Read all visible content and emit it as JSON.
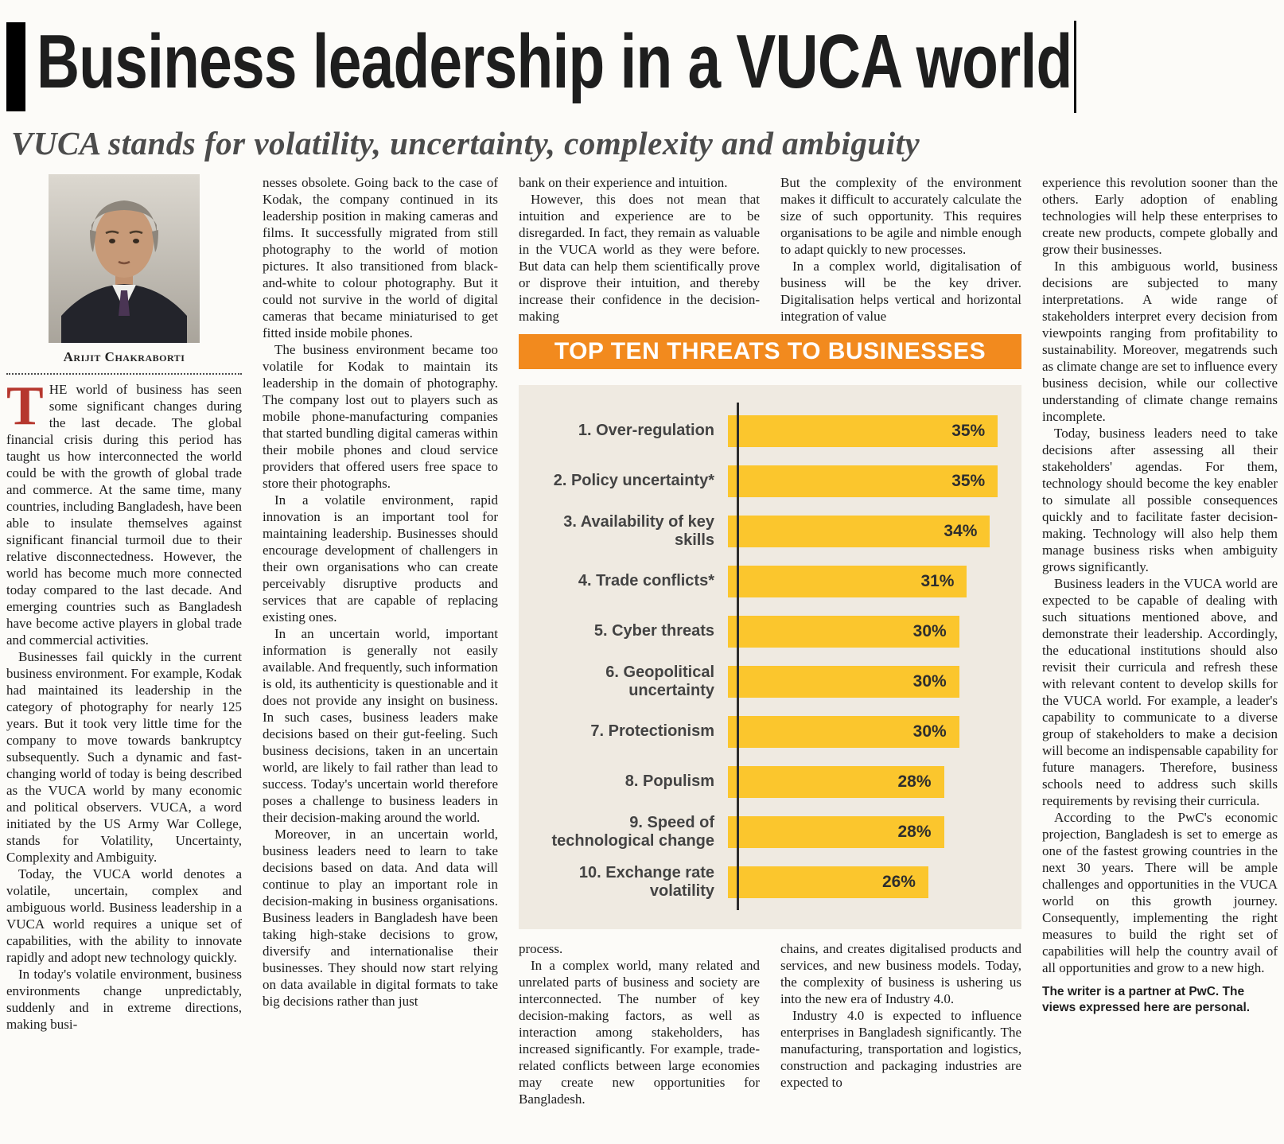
{
  "masthead": {
    "title": "Business leadership in a VUCA world",
    "subtitle": "VUCA stands for volatility, uncertainty, complexity and ambiguity"
  },
  "author": {
    "name": "Arijit Chakraborti"
  },
  "colors": {
    "banner_orange": "#f28a1e",
    "bar_yellow": "#fbc62d",
    "dropcap_red": "#b6372e",
    "chart_bg": "#efeae1"
  },
  "article": {
    "col1": {
      "dropcap": "T",
      "p1": "HE world of business has seen some significant changes during the last decade. The global financial crisis during this period has taught us how interconnected the world could be with the growth of global trade and commerce. At the same time, many countries, including Bangladesh, have been able to insulate themselves against significant financial turmoil due to their relative disconnectedness. However, the world has become much more connected today compared to the last decade. And emerging countries such as Bangladesh have become active players in global trade and commercial activities.",
      "p2": "Businesses fail quickly in the current business environment. For example, Kodak had maintained its leadership in the category of photography for nearly 125 years. But it took very little time for the company to move towards bankruptcy subsequently. Such a dynamic and fast-changing world of today is being described as the VUCA world by many economic and political observers. VUCA, a word initiated by the US Army War College, stands for Volatility, Uncertainty, Complexity and Ambiguity.",
      "p3": "Today, the VUCA world denotes a volatile, uncertain, complex and ambiguous world. Business leadership in a VUCA world requires a unique set of capabilities, with the ability to innovate rapidly and adopt new technology quickly.",
      "p4": "In today's volatile environment, business environments change unpredictably, suddenly and in extreme directions, making busi-"
    },
    "col2": {
      "p1": "nesses obsolete. Going back to the case of Kodak, the company continued in its leadership position in making cameras and films.  It successfully migrated from still photography to the world of motion pictures. It also transitioned from black-and-white to colour photography. But it could not survive in the world of digital cameras that became miniaturised to get fitted inside mobile phones.",
      "p2": "The business environment became too volatile for Kodak to maintain its leadership in the domain of photography. The company lost out to players such as mobile phone-manufacturing companies that started bundling digital cameras within their mobile phones and cloud service providers that offered users free space to store their photographs.",
      "p3": "In a volatile environment, rapid innovation is an important tool for maintaining leadership. Businesses should encourage development of challengers in their own organisations who can create perceivably disruptive products and services that are capable of replacing existing ones.",
      "p4": "In an uncertain world, important information is generally not easily available. And frequently, such information is old, its authenticity is questionable and it does not provide any insight on business. In such cases, business leaders make decisions based on their gut-feeling. Such business decisions, taken in an uncertain world, are likely to fail rather than lead to success. Today's uncertain world therefore poses a challenge to business leaders in their decision-making around the world.",
      "p5": "Moreover, in an uncertain world, business leaders need to learn to take decisions based on data. And data will continue to play an important role in decision-making in business organisations. Business leaders in Bangladesh have been taking high-stake decisions to grow, diversify and internationalise their businesses. They should now start relying on data available in digital formats to take big decisions rather than just"
    },
    "col3_top": {
      "p1": "bank on their experience and intuition.",
      "p2": "However, this does not mean that intuition and experience are to be disregarded. In fact, they remain as valuable in the VUCA world as they were before. But data can help them scientifically prove or disprove their intuition, and thereby increase their confidence in the decision-making"
    },
    "col3_bottom": {
      "p1": "process.",
      "p2": "In a complex world, many related and unrelated parts of business and society are interconnected. The number of key decision-making factors, as well as interaction among stakeholders, has increased significantly. For example, trade-related conflicts between large economies may create new opportunities for Bangladesh."
    },
    "col4_top": {
      "p1": "But the complexity of the environment makes it difficult to accurately calculate the size of such opportunity. This requires organisations to be agile and nimble enough to adapt quickly to new processes.",
      "p2": "In a complex world, digitalisation of business will be the key driver. Digitalisation helps vertical and horizontal integration of value"
    },
    "col4_bottom": {
      "p1": "chains, and creates digitalised products and services, and new business models. Today, the complexity of business is ushering us into the new era of Industry 4.0.",
      "p2": "Industry 4.0 is expected to influence enterprises in Bangladesh significantly. The manufacturing, transportation and logistics, construction and packaging industries are expected to"
    },
    "col5": {
      "p1": "experience this revolution sooner than the others. Early adoption of enabling technologies will help these enterprises to create new products, compete globally and grow their businesses.",
      "p2": "In this ambiguous world, business decisions are subjected to many interpretations.  A wide range of stakeholders interpret every decision from viewpoints ranging from profitability to sustainability.  Moreover, megatrends such as climate change are set to influence every business decision, while our collective understanding of climate change remains incomplete.",
      "p3": "Today, business leaders need to take decisions after assessing all their stakeholders' agendas. For them, technology should become the key enabler to simulate all possible consequences quickly and to facilitate faster decision-making. Technology will also help them manage business risks when ambiguity grows significantly.",
      "p4": "Business leaders in the VUCA world are expected to be capable of dealing with such situations mentioned above, and demonstrate their leadership. Accordingly, the educational institutions should also revisit their curricula and refresh these with relevant content to develop skills for the VUCA world. For example, a leader's capability to communicate to a diverse group of stakeholders to make a decision will become an indispensable capability for future managers. Therefore, business schools need to address such skills requirements by revising their curricula.",
      "p5": "According to the PwC's economic projection, Bangladesh is set to emerge as one of the fastest growing countries in the next 30 years. There will be ample challenges and opportunities in the VUCA world on this growth journey. Consequently, implementing the right measures to build the right set of capabilities will help the country avail of all opportunities and grow to a new high.",
      "footer": "The writer is a partner at PwC. The views expressed here are personal."
    }
  },
  "chart_data": {
    "type": "bar",
    "orientation": "horizontal",
    "title": "TOP TEN THREATS TO BUSINESSES",
    "categories": [
      "1. Over-regulation",
      "2. Policy uncertainty*",
      "3. Availability of key skills",
      "4. Trade conflicts*",
      "5. Cyber threats",
      "6. Geopolitical uncertainty",
      "7. Protectionism",
      "8. Populism",
      "9. Speed of technological change",
      "10. Exchange rate volatility"
    ],
    "values": [
      35,
      35,
      34,
      31,
      30,
      30,
      30,
      28,
      28,
      26
    ],
    "value_suffix": "%",
    "xlim": [
      0,
      36
    ],
    "grid": false,
    "legend": false,
    "bar_color": "#fbc62d",
    "banner_color": "#f28a1e"
  }
}
